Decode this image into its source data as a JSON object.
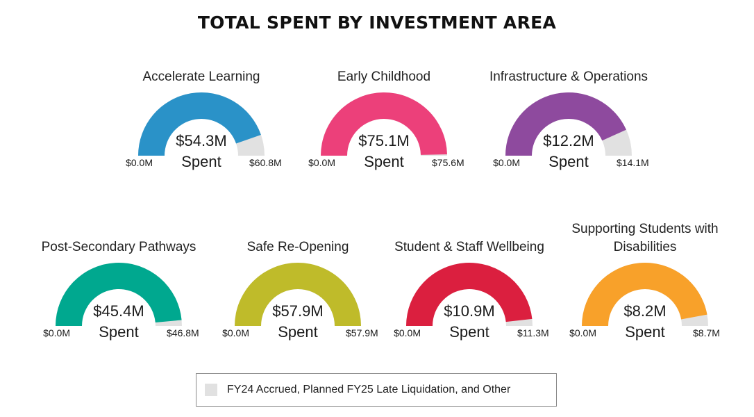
{
  "title": "TOTAL SPENT BY INVESTMENT AREA",
  "legend": {
    "label": "FY24 Accrued, Planned FY25 Late Liquidation, and Other",
    "color": "#e1e1e1"
  },
  "spent_word": "Spent",
  "chart_data": {
    "type": "gauge",
    "title": "TOTAL SPENT BY INVESTMENT AREA",
    "unit": "$M",
    "remainder_color": "#e1e1e1",
    "gauges": [
      {
        "name": "Accelerate Learning",
        "spent": 54.3,
        "total": 60.8,
        "min_label": "$0.0M",
        "value_label": "$54.3M",
        "max_label": "$60.8M",
        "color": "#2a92c8"
      },
      {
        "name": "Early Childhood",
        "spent": 75.1,
        "total": 75.6,
        "min_label": "$0.0M",
        "value_label": "$75.1M",
        "max_label": "$75.6M",
        "color": "#ec407a"
      },
      {
        "name": "Infrastructure & Operations",
        "spent": 12.2,
        "total": 14.1,
        "min_label": "$0.0M",
        "value_label": "$12.2M",
        "max_label": "$14.1M",
        "color": "#8e4a9e"
      },
      {
        "name": "Post-Secondary Pathways",
        "spent": 45.4,
        "total": 46.8,
        "min_label": "$0.0M",
        "value_label": "$45.4M",
        "max_label": "$46.8M",
        "color": "#00a88f"
      },
      {
        "name": "Safe Re-Opening",
        "spent": 57.9,
        "total": 57.9,
        "min_label": "$0.0M",
        "value_label": "$57.9M",
        "max_label": "$57.9M",
        "color": "#bfbb2a"
      },
      {
        "name": "Student & Staff Wellbeing",
        "spent": 10.9,
        "total": 11.3,
        "min_label": "$0.0M",
        "value_label": "$10.9M",
        "max_label": "$11.3M",
        "color": "#db1f3f"
      },
      {
        "name": "Supporting Students with Disabilities",
        "spent": 8.2,
        "total": 8.7,
        "min_label": "$0.0M",
        "value_label": "$8.2M",
        "max_label": "$8.7M",
        "color": "#f8a12a"
      }
    ]
  }
}
